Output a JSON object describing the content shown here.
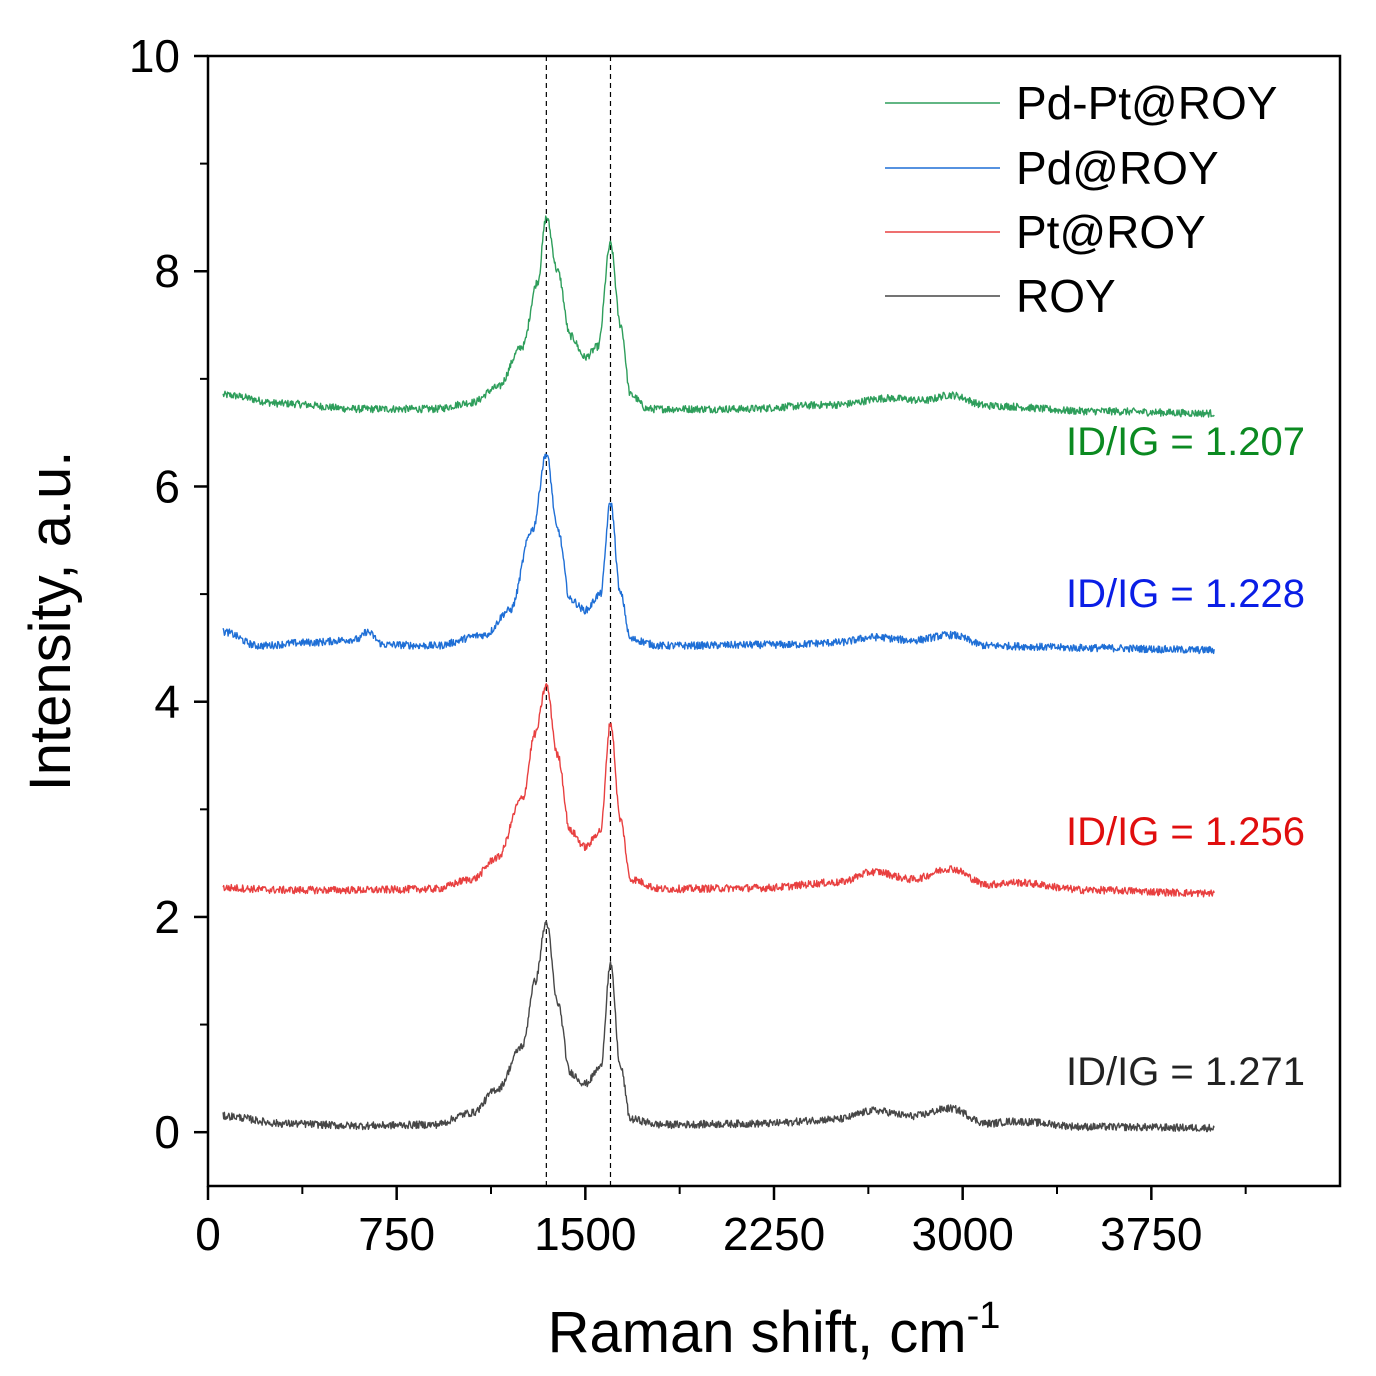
{
  "chart_data": {
    "type": "line",
    "title": "",
    "xlabel": "Raman shift, cm",
    "xlabel_superscript": "-1",
    "ylabel": "Intensity, a.u.",
    "xlim": [
      0,
      4500
    ],
    "ylim": [
      -0.5,
      10
    ],
    "x_ticks": [
      "0",
      "750",
      "1500",
      "2250",
      "3000",
      "3750"
    ],
    "y_ticks": [
      "0",
      "2",
      "4",
      "6",
      "8",
      "10"
    ],
    "reference_lines_x": [
      1345,
      1600
    ],
    "legend_position": "top-right",
    "series": [
      {
        "name": "Pd-Pt@ROY",
        "color": "#2e9e5b",
        "baseline": 6.7,
        "d_peak": 8.5,
        "g_peak": 8.25,
        "annotation": "ID/IG = 1.207",
        "annotation_color": "#0b8a21",
        "points": [
          [
            60,
            6.85
          ],
          [
            300,
            6.77
          ],
          [
            600,
            6.72
          ],
          [
            900,
            6.72
          ],
          [
            1050,
            6.78
          ],
          [
            1150,
            6.92
          ],
          [
            1250,
            7.3
          ],
          [
            1310,
            7.9
          ],
          [
            1345,
            8.5
          ],
          [
            1390,
            8.0
          ],
          [
            1440,
            7.4
          ],
          [
            1500,
            7.2
          ],
          [
            1550,
            7.3
          ],
          [
            1600,
            8.25
          ],
          [
            1640,
            7.5
          ],
          [
            1680,
            6.85
          ],
          [
            1750,
            6.72
          ],
          [
            2100,
            6.72
          ],
          [
            2500,
            6.76
          ],
          [
            2700,
            6.82
          ],
          [
            2850,
            6.8
          ],
          [
            2950,
            6.85
          ],
          [
            3100,
            6.75
          ],
          [
            3500,
            6.7
          ],
          [
            4000,
            6.68
          ]
        ]
      },
      {
        "name": "Pd@ROY",
        "color": "#1f6fd6",
        "baseline": 4.5,
        "d_peak": 6.3,
        "g_peak": 5.85,
        "annotation": "ID/IG = 1.228",
        "annotation_color": "#0a1ee6",
        "points": [
          [
            60,
            4.65
          ],
          [
            200,
            4.52
          ],
          [
            400,
            4.55
          ],
          [
            600,
            4.58
          ],
          [
            630,
            4.65
          ],
          [
            700,
            4.53
          ],
          [
            900,
            4.52
          ],
          [
            1100,
            4.62
          ],
          [
            1200,
            4.85
          ],
          [
            1290,
            5.6
          ],
          [
            1345,
            6.3
          ],
          [
            1390,
            5.6
          ],
          [
            1440,
            4.95
          ],
          [
            1500,
            4.85
          ],
          [
            1560,
            5.0
          ],
          [
            1600,
            5.85
          ],
          [
            1640,
            5.0
          ],
          [
            1680,
            4.58
          ],
          [
            1800,
            4.52
          ],
          [
            2300,
            4.53
          ],
          [
            2500,
            4.55
          ],
          [
            2650,
            4.6
          ],
          [
            2800,
            4.57
          ],
          [
            2950,
            4.62
          ],
          [
            3100,
            4.52
          ],
          [
            3500,
            4.5
          ],
          [
            4000,
            4.48
          ]
        ]
      },
      {
        "name": "Pt@ROY",
        "color": "#e84040",
        "baseline": 2.25,
        "d_peak": 4.15,
        "g_peak": 3.8,
        "annotation": "ID/IG = 1.256",
        "annotation_color": "#e00e0e",
        "points": [
          [
            60,
            2.27
          ],
          [
            300,
            2.25
          ],
          [
            600,
            2.25
          ],
          [
            900,
            2.26
          ],
          [
            1050,
            2.35
          ],
          [
            1150,
            2.55
          ],
          [
            1250,
            3.1
          ],
          [
            1300,
            3.7
          ],
          [
            1345,
            4.15
          ],
          [
            1390,
            3.5
          ],
          [
            1440,
            2.8
          ],
          [
            1500,
            2.65
          ],
          [
            1560,
            2.8
          ],
          [
            1600,
            3.8
          ],
          [
            1640,
            2.9
          ],
          [
            1680,
            2.35
          ],
          [
            1800,
            2.26
          ],
          [
            2200,
            2.27
          ],
          [
            2500,
            2.32
          ],
          [
            2650,
            2.42
          ],
          [
            2800,
            2.35
          ],
          [
            2950,
            2.45
          ],
          [
            3100,
            2.3
          ],
          [
            3200,
            2.32
          ],
          [
            3500,
            2.25
          ],
          [
            4000,
            2.22
          ]
        ]
      },
      {
        "name": "ROY",
        "color": "#474747",
        "baseline": 0.05,
        "d_peak": 1.95,
        "g_peak": 1.55,
        "annotation": "ID/IG = 1.271",
        "annotation_color": "#222222",
        "points": [
          [
            60,
            0.15
          ],
          [
            300,
            0.08
          ],
          [
            600,
            0.06
          ],
          [
            900,
            0.07
          ],
          [
            1050,
            0.18
          ],
          [
            1150,
            0.4
          ],
          [
            1250,
            0.8
          ],
          [
            1300,
            1.4
          ],
          [
            1345,
            1.95
          ],
          [
            1390,
            1.2
          ],
          [
            1440,
            0.55
          ],
          [
            1500,
            0.45
          ],
          [
            1560,
            0.6
          ],
          [
            1600,
            1.55
          ],
          [
            1640,
            0.6
          ],
          [
            1680,
            0.12
          ],
          [
            1800,
            0.07
          ],
          [
            2200,
            0.08
          ],
          [
            2500,
            0.12
          ],
          [
            2650,
            0.2
          ],
          [
            2800,
            0.15
          ],
          [
            2950,
            0.22
          ],
          [
            3100,
            0.08
          ],
          [
            3200,
            0.1
          ],
          [
            3500,
            0.05
          ],
          [
            4000,
            0.04
          ]
        ]
      }
    ]
  }
}
